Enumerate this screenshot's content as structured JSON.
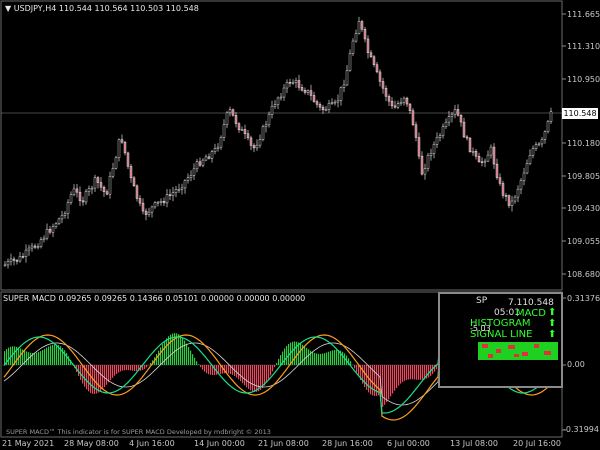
{
  "chart_header": {
    "symbol_line": "▼ USDJPY,H4  110.544 110.564 110.503 110.548"
  },
  "price_axis": {
    "ticks": [
      "111.665",
      "111.310",
      "110.950",
      "110.548",
      "110.180",
      "109.805",
      "109.430",
      "109.055",
      "108.680"
    ],
    "current_price": "110.548"
  },
  "indicator": {
    "header": "SUPER MACD 0.09265 0.09265 0.14366 0.05101 0.00000 0.00000 0.00000",
    "axis_ticks": [
      "0.31376",
      "0.00",
      "-0.31994"
    ],
    "footer": "SUPER MACD™ This indicator is for SUPER MACD Developed by mdbright © 2013",
    "panel": {
      "sp": "SP",
      "price": "7.110.548",
      "time": "05:01",
      "macd": "MACD",
      "hist": "HISTOGRAM",
      "signal": "SIGNAL LINE",
      "value": "-5.03"
    }
  },
  "time_axis": [
    "21 May 2021",
    "28 May 08:00",
    "4 Jun 16:00",
    "14 Jun 00:00",
    "21 Jun 08:00",
    "28 Jun 16:00",
    "6 Jul 00:00",
    "13 Jul 08:00",
    "20 Jul 16:00"
  ],
  "colors": {
    "up_candle": "#000000",
    "candle_outline": "#ffffff",
    "down_candle": "#c86a7a",
    "hist_up": "#2ecc40",
    "hist_down": "#e84a5f",
    "macd_line": "#ff9d1a",
    "signal_line": "#18e08a",
    "signal2": "#d9d9d9"
  }
}
